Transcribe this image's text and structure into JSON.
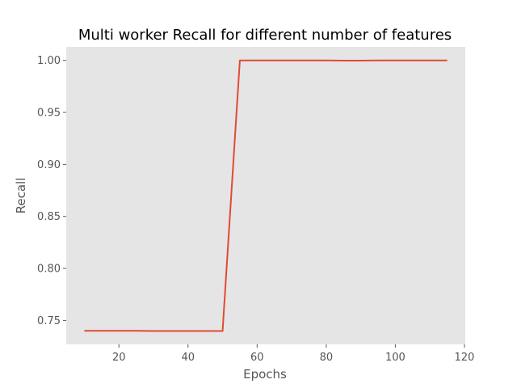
{
  "chart_data": {
    "type": "line",
    "title": "Multi worker Recall for different number of features",
    "xlabel": "Epochs",
    "ylabel": "Recall",
    "xlim": [
      4.75,
      120.25
    ],
    "ylim": [
      0.727,
      1.013
    ],
    "grid": false,
    "xticks": [
      20,
      40,
      60,
      80,
      100,
      120
    ],
    "yticks": [
      0.75,
      0.8,
      0.85,
      0.9,
      0.95,
      1.0
    ],
    "xtick_labels": [
      "20",
      "40",
      "60",
      "80",
      "100",
      "120"
    ],
    "ytick_labels": [
      "0.75",
      "0.80",
      "0.85",
      "0.90",
      "0.95",
      "1.00"
    ],
    "series": [
      {
        "color": "#E24A33",
        "x": [
          10,
          15,
          20,
          25,
          30,
          35,
          40,
          45,
          50,
          55,
          60,
          65,
          70,
          75,
          80,
          85,
          90,
          95,
          100,
          105,
          110,
          115
        ],
        "y": [
          0.74,
          0.74,
          0.74,
          0.74,
          0.7398,
          0.7398,
          0.7398,
          0.7398,
          0.7398,
          1.0,
          1.0,
          1.0,
          1.0,
          1.0,
          1.0,
          0.9998,
          0.9998,
          1.0,
          1.0,
          1.0,
          1.0,
          1.0
        ]
      }
    ]
  }
}
